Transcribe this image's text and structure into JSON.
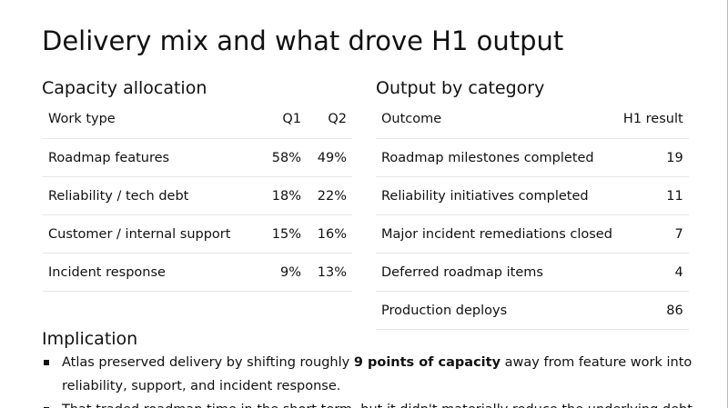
{
  "title": "Delivery mix and what drove H1 output",
  "capacity": {
    "heading": "Capacity allocation",
    "header": [
      "Work type",
      "Q1",
      "Q2"
    ],
    "rows": [
      [
        "Roadmap features",
        "58%",
        "49%"
      ],
      [
        "Reliability / tech debt",
        "18%",
        "22%"
      ],
      [
        "Customer / internal support",
        "15%",
        "16%"
      ],
      [
        "Incident response",
        "9%",
        "13%"
      ]
    ]
  },
  "output": {
    "heading": "Output by category",
    "header": [
      "Outcome",
      "H1 result"
    ],
    "rows": [
      [
        "Roadmap milestones completed",
        "19"
      ],
      [
        "Reliability initiatives completed",
        "11"
      ],
      [
        "Major incident remediations closed",
        "7"
      ],
      [
        "Deferred roadmap items",
        "4"
      ],
      [
        "Production deploys",
        "86"
      ]
    ]
  },
  "implication": {
    "heading": "Implication",
    "bullets": [
      [
        "Atlas preserved delivery by shifting roughly ",
        "9 points of capacity",
        " away from feature work into reliability, support, and incident response."
      ],
      [
        "That traded roadmap time in the short term, but it didn't materially reduce the underlying debt."
      ]
    ]
  }
}
